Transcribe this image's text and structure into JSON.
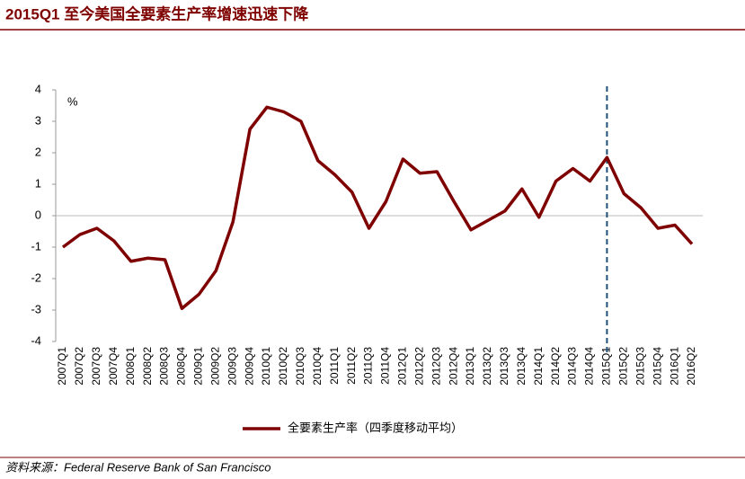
{
  "chart_data": {
    "type": "line",
    "title": "2015Q1 至今美国全要素生产率增速迅速下降",
    "y_unit": "%",
    "source": "资料来源：Federal Reserve Bank of San Francisco",
    "categories": [
      "2007Q1",
      "2007Q2",
      "2007Q3",
      "2007Q4",
      "2008Q1",
      "2008Q2",
      "2008Q3",
      "2008Q4",
      "2009Q1",
      "2009Q2",
      "2009Q3",
      "2009Q4",
      "2010Q1",
      "2010Q2",
      "2010Q3",
      "2010Q4",
      "2011Q1",
      "2011Q2",
      "2011Q3",
      "2011Q4",
      "2012Q1",
      "2012Q2",
      "2012Q3",
      "2012Q4",
      "2013Q1",
      "2013Q2",
      "2013Q3",
      "2013Q4",
      "2014Q1",
      "2014Q2",
      "2014Q3",
      "2014Q4",
      "2015Q1",
      "2015Q2",
      "2015Q3",
      "2015Q4",
      "2016Q1",
      "2016Q2"
    ],
    "series": [
      {
        "name": "全要素生产率（四季度移动平均）",
        "color": "#7f0000",
        "values": [
          -1.0,
          -0.6,
          -0.4,
          -0.8,
          -1.45,
          -1.35,
          -1.4,
          -2.95,
          -2.5,
          -1.75,
          -0.2,
          2.75,
          3.45,
          3.3,
          3.0,
          1.75,
          1.3,
          0.75,
          -0.4,
          0.45,
          1.8,
          1.35,
          1.4,
          0.45,
          -0.45,
          -0.15,
          0.15,
          0.85,
          -0.05,
          1.1,
          1.5,
          1.1,
          1.85,
          0.7,
          0.25,
          -0.4,
          -0.3,
          -0.9
        ]
      }
    ],
    "ylim": [
      -4,
      4
    ],
    "yticks": [
      -4,
      -3,
      -2,
      -1,
      0,
      1,
      2,
      3,
      4
    ],
    "marker_category": "2015Q1",
    "marker_color": "#1f4e79",
    "legend": "bottom"
  }
}
